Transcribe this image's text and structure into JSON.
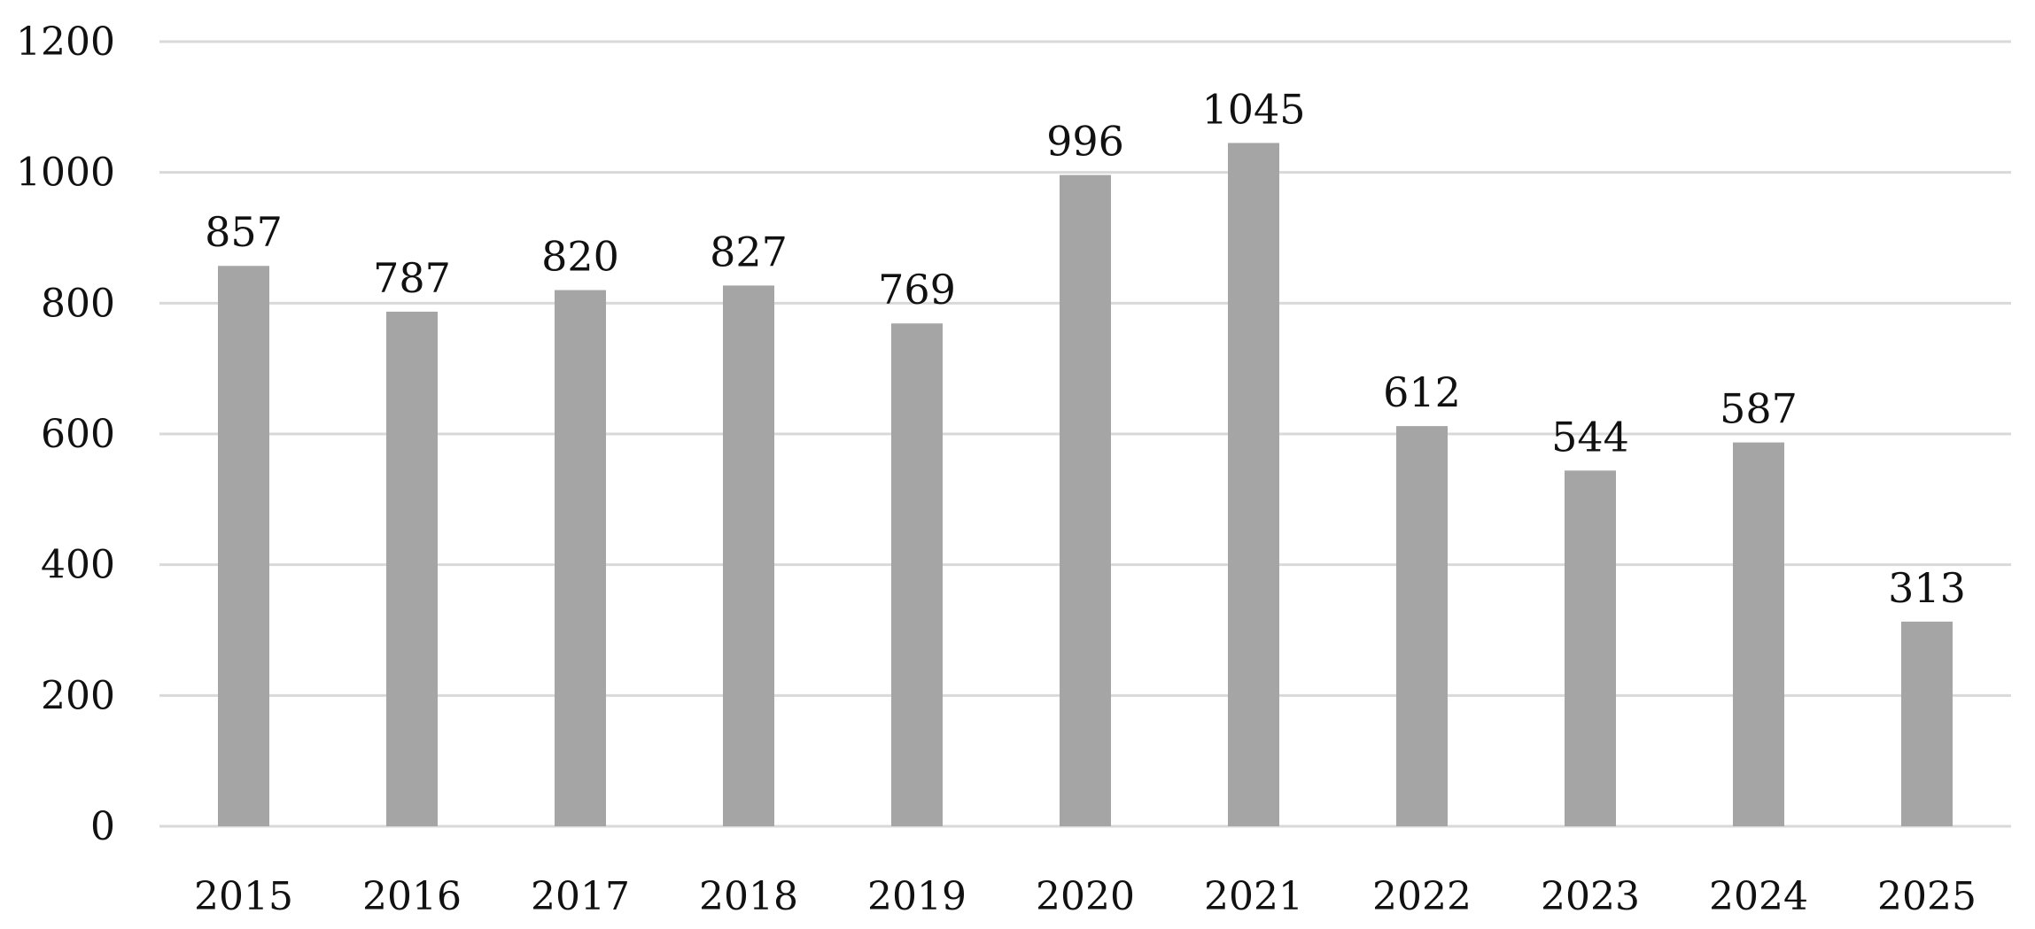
{
  "chart_data": {
    "type": "bar",
    "title": "",
    "xlabel": "",
    "ylabel": "",
    "categories": [
      "2015",
      "2016",
      "2017",
      "2018",
      "2019",
      "2020",
      "2021",
      "2022",
      "2023",
      "2024",
      "2025"
    ],
    "values": [
      857,
      787,
      820,
      827,
      769,
      996,
      1045,
      612,
      544,
      587,
      313
    ],
    "ylim": [
      0,
      1200
    ],
    "yticks": [
      0,
      200,
      400,
      600,
      800,
      1000,
      1200
    ],
    "grid": true,
    "legend": "none",
    "data_labels": true,
    "bar_color": "#a5a5a5",
    "grid_color": "#d9d9d9",
    "text_color": "#111111"
  }
}
